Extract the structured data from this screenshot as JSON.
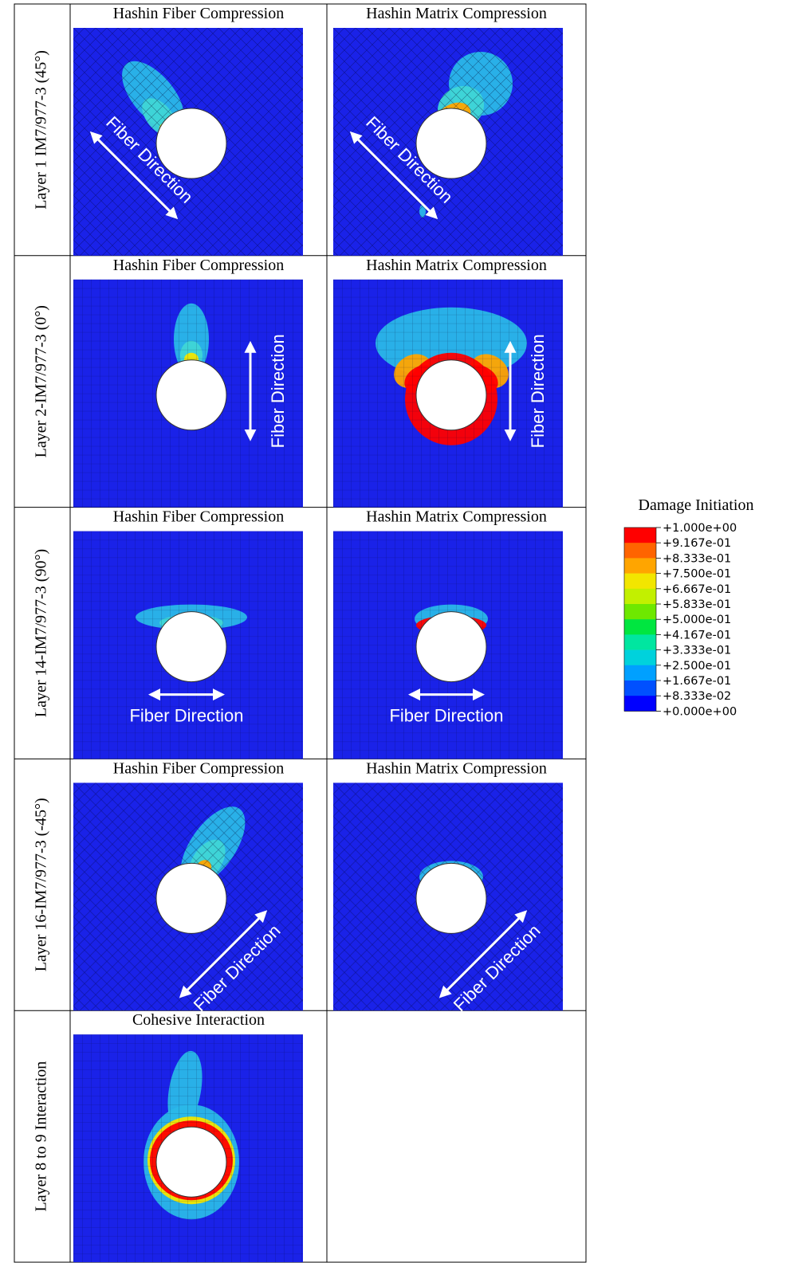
{
  "rows": [
    {
      "label": "Layer 1 IM7/977-3 (45°)",
      "panels": [
        {
          "title": "Hashin Fiber Compression",
          "direction": "Fiber Direction"
        },
        {
          "title": "Hashin Matrix Compression",
          "direction": "Fiber Direction"
        }
      ]
    },
    {
      "label": "Layer 2-IM7/977-3 (0°)",
      "panels": [
        {
          "title": "Hashin Fiber Compression",
          "direction": "Fiber Direction"
        },
        {
          "title": "Hashin Matrix Compression",
          "direction": "Fiber Direction"
        }
      ]
    },
    {
      "label": "Layer 14-IM7/977-3 (90°)",
      "panels": [
        {
          "title": "Hashin Fiber Compression",
          "direction": "Fiber Direction"
        },
        {
          "title": "Hashin Matrix Compression",
          "direction": "Fiber Direction"
        }
      ]
    },
    {
      "label": "Layer 16-IM7/977-3 (-45°)",
      "panels": [
        {
          "title": "Hashin Fiber Compression",
          "direction": "Fiber Direction"
        },
        {
          "title": "Hashin Matrix Compression",
          "direction": "Fiber Direction"
        }
      ]
    },
    {
      "label": "Layer 8 to 9 Interaction",
      "panels": [
        {
          "title": "Cohesive Interaction"
        }
      ]
    }
  ],
  "legend": {
    "title": "Damage Initiation",
    "labels": [
      "+1.000e+00",
      "+9.167e-01",
      "+8.333e-01",
      "+7.500e-01",
      "+6.667e-01",
      "+5.833e-01",
      "+5.000e-01",
      "+4.167e-01",
      "+3.333e-01",
      "+2.500e-01",
      "+1.667e-01",
      "+8.333e-02",
      "+0.000e+00"
    ],
    "colors": [
      "#ff0000",
      "#ff6400",
      "#ffa500",
      "#f2e600",
      "#c2f000",
      "#6ee800",
      "#00e640",
      "#00e6a0",
      "#00d2dc",
      "#00a0ff",
      "#0050ff",
      "#0000ff"
    ]
  }
}
